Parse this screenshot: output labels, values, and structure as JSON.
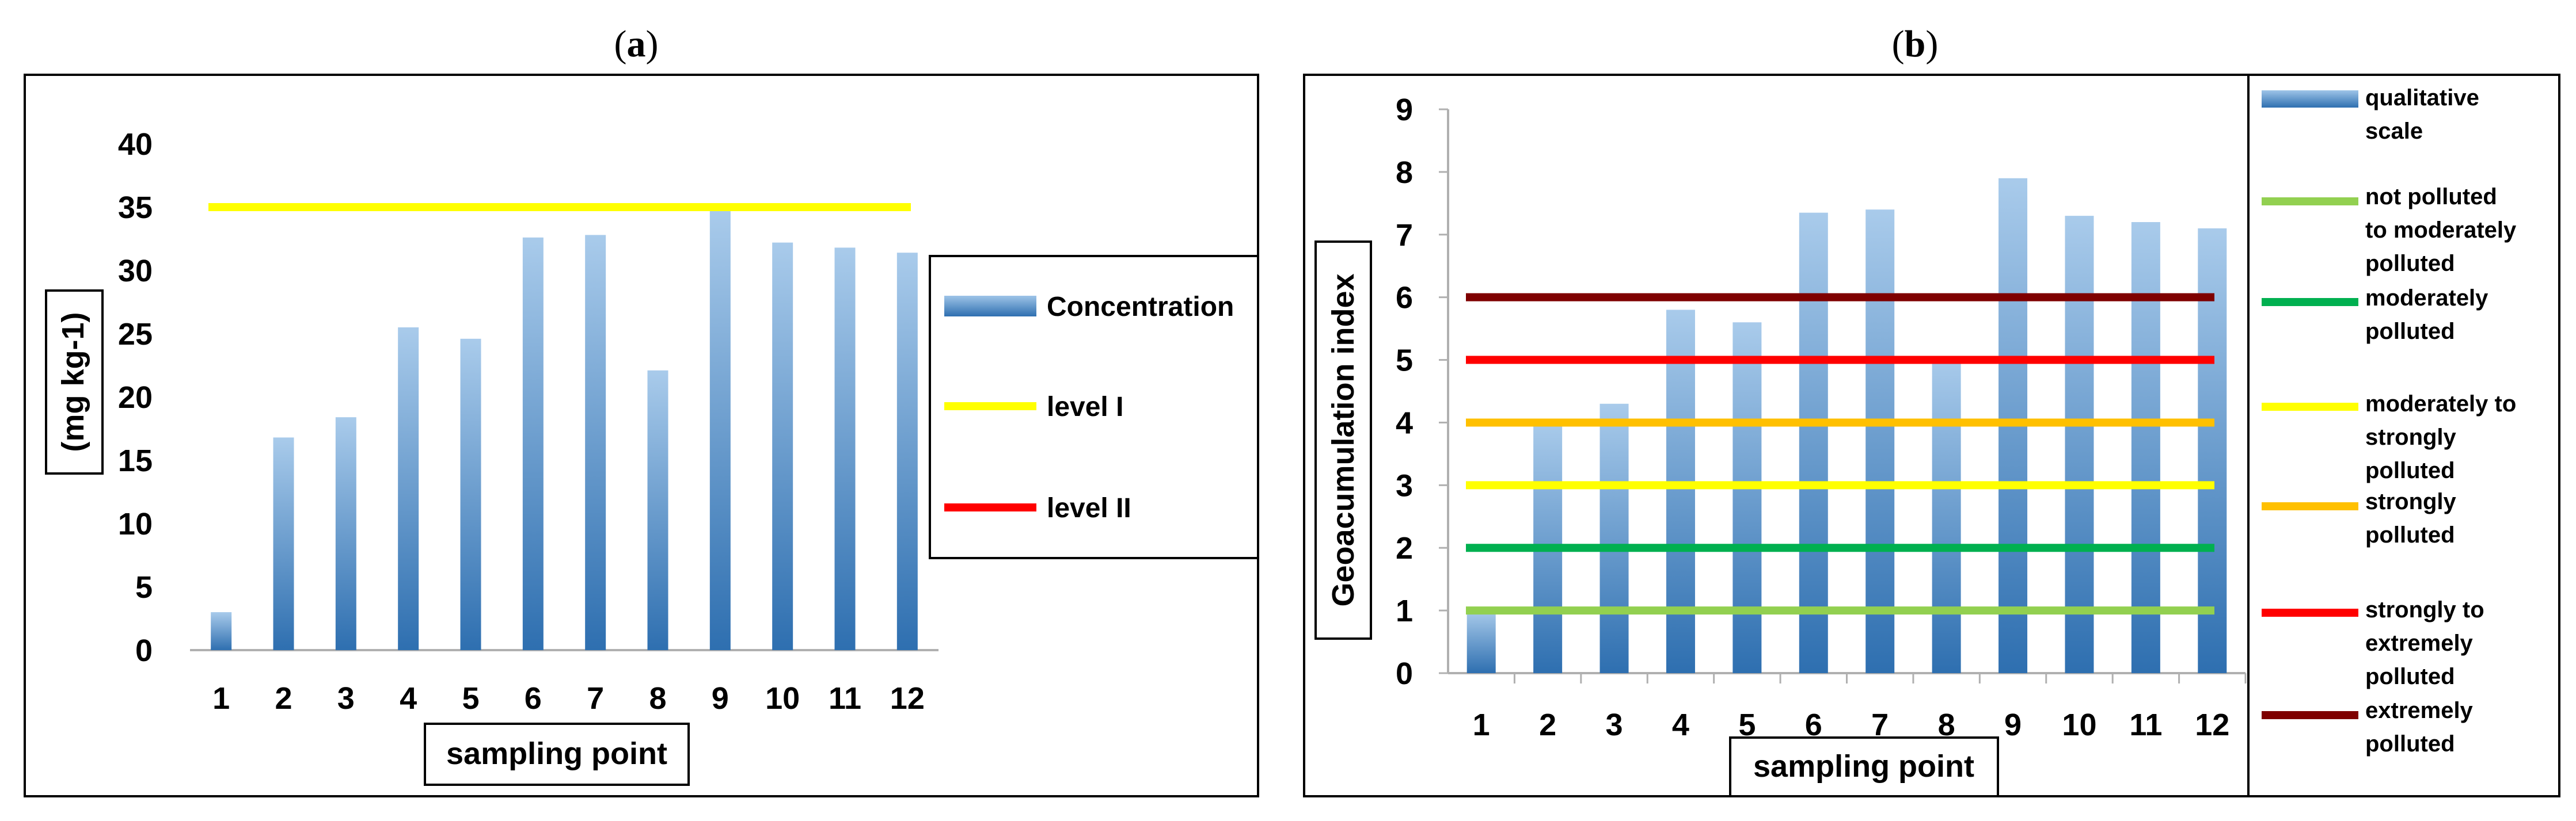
{
  "chart_data": [
    {
      "panel": "(a)",
      "type": "bar",
      "categories": [
        "1",
        "2",
        "3",
        "4",
        "5",
        "6",
        "7",
        "8",
        "9",
        "10",
        "11",
        "12"
      ],
      "series": [
        {
          "name": "Concentration",
          "values": [
            3.0,
            16.8,
            18.4,
            25.5,
            24.6,
            32.6,
            32.8,
            22.1,
            34.7,
            32.2,
            31.8,
            31.4
          ],
          "color": "#2e75b6"
        }
      ],
      "reference_lines": [
        {
          "name": "level I",
          "value": 35,
          "color": "#ffff00"
        },
        {
          "name": "level II",
          "value": null,
          "color": "#ff0000"
        }
      ],
      "xlabel": "sampling point",
      "ylabel": "(mg kg-1)",
      "ylim": [
        0,
        40
      ],
      "yticks": [
        "0",
        "5",
        "10",
        "15",
        "20",
        "25",
        "30",
        "35",
        "40"
      ],
      "legend": [
        "Concentration",
        "level I",
        "level II"
      ],
      "legend_position": "right"
    },
    {
      "panel": "(b)",
      "type": "bar",
      "categories": [
        "1",
        "2",
        "3",
        "4",
        "5",
        "6",
        "7",
        "8",
        "9",
        "10",
        "11",
        "12"
      ],
      "series": [
        {
          "name": "qualitative scale",
          "values": [
            1.0,
            4.0,
            4.3,
            5.8,
            5.6,
            7.35,
            7.4,
            5.05,
            7.9,
            7.3,
            7.2,
            7.1
          ],
          "color": "#2e75b6"
        }
      ],
      "reference_lines": [
        {
          "name": "not polluted to moderately polluted",
          "value": 1,
          "color": "#92d050"
        },
        {
          "name": "moderately polluted",
          "value": 2,
          "color": "#00b050"
        },
        {
          "name": "moderately to strongly polluted",
          "value": 3,
          "color": "#ffff00"
        },
        {
          "name": "strongly polluted",
          "value": 4,
          "color": "#ffc000"
        },
        {
          "name": "strongly to extremely polluted",
          "value": 5,
          "color": "#ff0000"
        },
        {
          "name": "extremely polluted",
          "value": 6,
          "color": "#7f0000"
        }
      ],
      "xlabel": "sampling point",
      "ylabel": "Geoacumulation index",
      "ylim": [
        0,
        9
      ],
      "yticks": [
        "0",
        "1",
        "2",
        "3",
        "4",
        "5",
        "6",
        "7",
        "8",
        "9"
      ],
      "legend": [
        [
          "qualitative",
          "scale"
        ],
        [
          "not polluted",
          "to moderately",
          "polluted"
        ],
        [
          "moderately",
          "polluted"
        ],
        [
          "moderately to",
          "strongly",
          "polluted"
        ],
        [
          "strongly",
          "polluted"
        ],
        [
          "strongly to",
          "extremely",
          "polluted"
        ],
        [
          "extremely",
          "polluted"
        ]
      ],
      "legend_position": "right"
    }
  ]
}
